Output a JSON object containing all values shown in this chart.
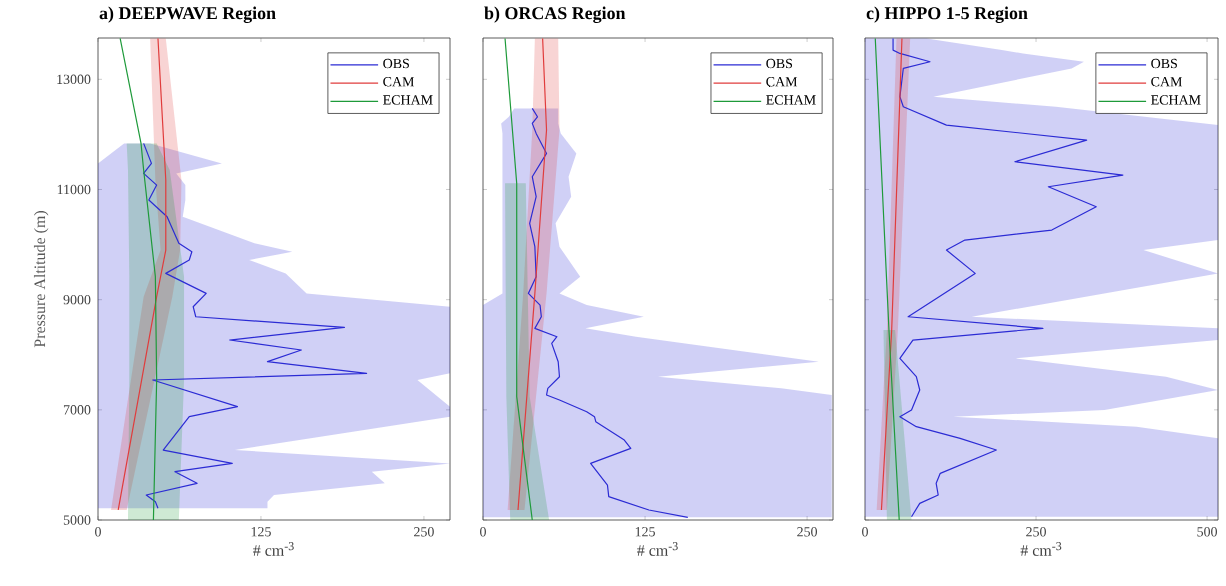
{
  "chart_data": [
    {
      "type": "line",
      "orientation": "horizontal",
      "title": "a) DEEPWAVE Region",
      "xlabel": "# cm$^{-3}$",
      "ylabel": "Pressure Altitude (m)",
      "xlim": [
        0,
        270
      ],
      "xticks": [
        0,
        125,
        250
      ],
      "ylim": [
        5000,
        13750
      ],
      "yticks": [
        5000,
        7000,
        9000,
        11000,
        13000
      ],
      "legend": "top right",
      "series": [
        {
          "name": "OBS",
          "color": "#2b2bd4",
          "x": [
            5212,
            5333,
            5454,
            5666,
            5877,
            6028,
            6270,
            6876,
            7057,
            7541,
            7662,
            7874,
            8086,
            8267,
            8497,
            8690,
            8872,
            9114,
            9477,
            9719,
            9870,
            10022,
            10505,
            10808,
            11080,
            11292,
            11474,
            11837
          ],
          "values": [
            46,
            44,
            37,
            76,
            59,
            103,
            50,
            70,
            107,
            42,
            206,
            130,
            156,
            101,
            189,
            75,
            73,
            83,
            52,
            70,
            72,
            62,
            53,
            39,
            45,
            35,
            41,
            35
          ],
          "lower": [
            0,
            0,
            0,
            0,
            0,
            0,
            0,
            0,
            0,
            0,
            0,
            0,
            0,
            0,
            0,
            0,
            0,
            0,
            0,
            0,
            0,
            0,
            0,
            0,
            0,
            0,
            0,
            20
          ],
          "upper": [
            130,
            130,
            135,
            220,
            210,
            270,
            105,
            270,
            270,
            245,
            270,
            270,
            270,
            270,
            270,
            270,
            270,
            160,
            144,
            116,
            149,
            120,
            65,
            67,
            67,
            60,
            95,
            40
          ]
        },
        {
          "name": "CAM",
          "color": "#e03c3c",
          "x": [
            5182,
            9054,
            9900,
            11171,
            13742
          ],
          "values": [
            15.5,
            45,
            52,
            52,
            46
          ],
          "lower": [
            10,
            35,
            48,
            44,
            40
          ],
          "upper": [
            22,
            57,
            63,
            64,
            52
          ]
        },
        {
          "name": "ECHAM",
          "color": "#1e9a3a",
          "x": [
            5000,
            7541,
            9417,
            11353,
            11837,
            13742
          ],
          "values": [
            42.5,
            45,
            44,
            35,
            33,
            17
          ],
          "lower": [
            23,
            24,
            24,
            23,
            22,
            null
          ],
          "upper": [
            62,
            66,
            66,
            55,
            45,
            null
          ]
        }
      ]
    },
    {
      "type": "line",
      "orientation": "horizontal",
      "title": "b) ORCAS Region",
      "xlabel": "# cm$^{-3}$",
      "xlim": [
        0,
        270
      ],
      "xticks": [
        0,
        125,
        250
      ],
      "ylim": [
        5000,
        13750
      ],
      "yticks": [
        5000,
        7000,
        9000,
        11000,
        13000
      ],
      "tick_labels": "x",
      "legend": "top right",
      "series": [
        {
          "name": "OBS",
          "color": "#2b2bd4",
          "x": [
            5048,
            5182,
            5424,
            5635,
            6028,
            6300,
            6452,
            6785,
            6876,
            6966,
            7178,
            7269,
            7390,
            7601,
            7874,
            8206,
            8327,
            8479,
            8690,
            8902,
            9114,
            9417,
            9961,
            10385,
            10869,
            11232,
            11655,
            12018,
            12200,
            12320,
            12472
          ],
          "values": [
            158,
            128,
            97,
            96,
            83,
            114,
            109,
            87,
            86,
            80,
            59,
            49,
            50,
            59,
            58,
            53,
            57,
            40,
            45,
            44,
            35,
            41,
            40,
            36,
            41,
            38,
            49,
            41,
            38,
            42,
            38
          ],
          "lower": [
            0,
            0,
            0,
            0,
            0,
            0,
            0,
            0,
            0,
            0,
            0,
            0,
            0,
            0,
            0,
            0,
            0,
            0,
            0,
            0,
            15,
            15,
            15,
            15,
            15,
            15,
            15,
            15,
            14,
            20,
            24
          ],
          "upper": [
            269,
            269,
            269,
            269,
            269,
            269,
            269,
            269,
            269,
            269,
            269,
            269,
            230,
            135,
            259,
            156,
            118,
            79,
            124,
            80,
            59,
            75,
            59,
            56,
            68,
            66,
            72,
            60,
            58,
            58,
            58
          ]
        },
        {
          "name": "CAM",
          "color": "#e03c3c",
          "x": [
            5182,
            9114,
            12079,
            13742
          ],
          "values": [
            27,
            40,
            49,
            46
          ],
          "lower": [
            19,
            31,
            38,
            40
          ],
          "upper": [
            32,
            49,
            59,
            58
          ]
        },
        {
          "name": "ECHAM",
          "color": "#1e9a3a",
          "x": [
            5000,
            7239,
            11111,
            13742
          ],
          "values": [
            38,
            26,
            26,
            17
          ],
          "lower": [
            21,
            18,
            17,
            null
          ],
          "upper": [
            51,
            36,
            33,
            null
          ]
        }
      ]
    },
    {
      "type": "line",
      "orientation": "horizontal",
      "title": "c) HIPPO 1-5 Region",
      "xlabel": "# cm$^{-3}$",
      "xlim": [
        0,
        516
      ],
      "xticks": [
        0,
        250,
        500
      ],
      "ylim": [
        5000,
        13750
      ],
      "yticks": [
        5000,
        7000,
        9000,
        11000,
        13000
      ],
      "tick_labels": "x",
      "legend": "top right",
      "series": [
        {
          "name": "OBS",
          "color": "#2b2bd4",
          "x": [
            5060,
            5302,
            5454,
            5666,
            5847,
            6270,
            6482,
            6694,
            6876,
            6997,
            7360,
            7601,
            7934,
            8267,
            8479,
            8690,
            9477,
            9901,
            10082,
            10264,
            10687,
            11050,
            11262,
            11504,
            11897,
            12169,
            12502,
            12683,
            13198,
            13319,
            13470,
            13530,
            13742
          ],
          "values": [
            68,
            80,
            107,
            104,
            110,
            192,
            139,
            75,
            51,
            68,
            80,
            75,
            51,
            70,
            260,
            63,
            161,
            119,
            146,
            273,
            338,
            268,
            377,
            219,
            324,
            119,
            56,
            51,
            56,
            95,
            51,
            41,
            41
          ],
          "lower": [
            0,
            0,
            0,
            0,
            0,
            0,
            0,
            0,
            0,
            0,
            0,
            0,
            0,
            0,
            0,
            0,
            0,
            0,
            0,
            0,
            0,
            0,
            0,
            0,
            0,
            0,
            0,
            0,
            0,
            0,
            0,
            0,
            0
          ],
          "upper": [
            516,
            516,
            516,
            516,
            516,
            516,
            516,
            397,
            129,
            350,
            516,
            440,
            220,
            516,
            516,
            156,
            516,
            407,
            516,
            516,
            516,
            516,
            516,
            516,
            516,
            516,
            279,
            100,
            302,
            320,
            231,
            200,
            90
          ]
        },
        {
          "name": "CAM",
          "color": "#e03c3c",
          "x": [
            5182,
            8449,
            13742
          ],
          "values": [
            24,
            39,
            54
          ],
          "lower": [
            17,
            32,
            46
          ],
          "upper": [
            32,
            48,
            66
          ]
        },
        {
          "name": "ECHAM",
          "color": "#1e9a3a",
          "x": [
            5000,
            8449,
            13742
          ],
          "values": [
            50,
            35,
            15
          ],
          "lower": [
            32,
            27,
            null
          ],
          "upper": [
            68,
            44,
            null
          ]
        }
      ]
    }
  ]
}
